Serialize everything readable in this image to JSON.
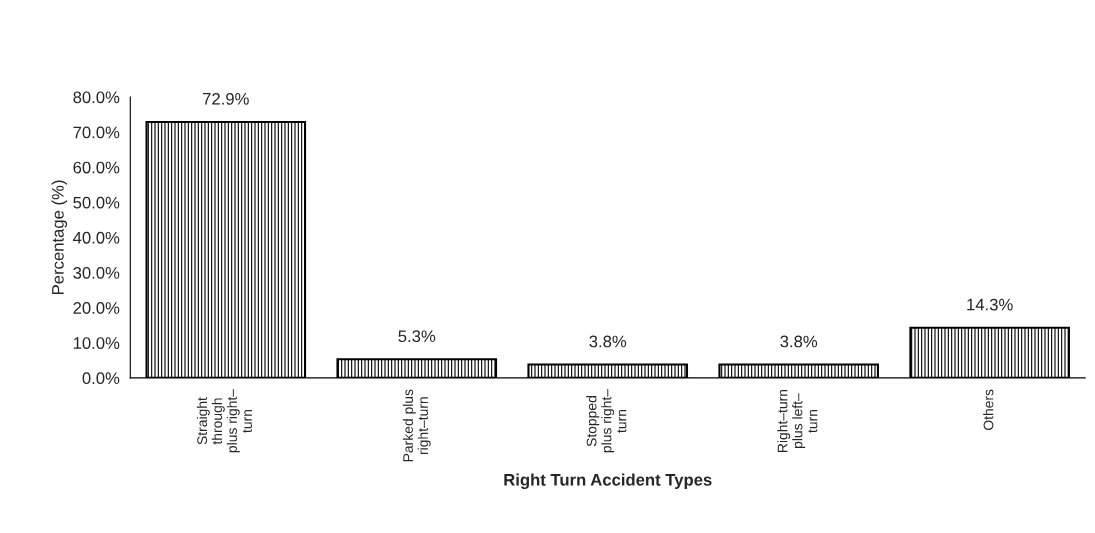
{
  "chart_data": {
    "type": "bar",
    "xlabel": "Right Turn Accident Types",
    "ylabel": "Percentage (%)",
    "categories": [
      "Straight\nthrough\nplus right–\nturn",
      "Parked plus\nright–turn",
      "Stopped\nplus right–\nturn",
      "Right–turn\nplus left–\nturn",
      "Others"
    ],
    "values": [
      72.9,
      5.3,
      3.8,
      3.8,
      14.3
    ],
    "value_labels": [
      "72.9%",
      "5.3%",
      "3.8%",
      "3.8%",
      "14.3%"
    ],
    "color": "#000000",
    "ylim": [
      0,
      80
    ],
    "yticks": [
      {
        "value": 0,
        "label": "0.0%"
      },
      {
        "value": 10,
        "label": "10.0%"
      },
      {
        "value": 20,
        "label": "20.0%"
      },
      {
        "value": 30,
        "label": "30.0%"
      },
      {
        "value": 40,
        "label": "40.0%"
      },
      {
        "value": 50,
        "label": "50.0%"
      },
      {
        "value": 60,
        "label": "60.0%"
      },
      {
        "value": 70,
        "label": "70.0%"
      },
      {
        "value": 80,
        "label": "80.0%"
      }
    ],
    "grid": false,
    "legend": false
  }
}
